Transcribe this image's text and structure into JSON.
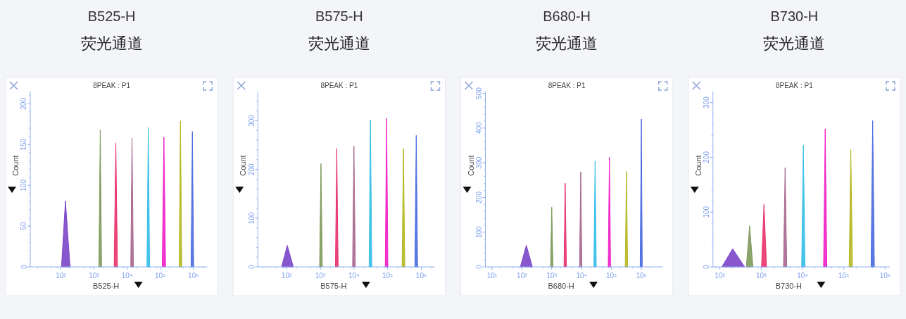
{
  "chart_data": [
    {
      "type": "area",
      "title": "B525-H",
      "subtitle": "荧光通道",
      "annotations": [
        "8PEAK : P1"
      ],
      "xlabel": "B525-H",
      "ylabel": "Count",
      "log": "x",
      "xlim": [
        12,
        2600000
      ],
      "xticks": [
        {
          "value": 100,
          "label": "10²"
        },
        {
          "value": 1000,
          "label": "10³"
        },
        {
          "value": 10000,
          "label": "10⁴"
        },
        {
          "value": 100000,
          "label": "10⁵"
        },
        {
          "value": 1000000,
          "label": "10⁶"
        }
      ],
      "ylim": [
        0,
        215
      ],
      "yticks": [
        0,
        50,
        100,
        150,
        200
      ],
      "series": [
        {
          "color": "#7b45c8",
          "x": [
            105,
            138,
            190
          ],
          "values": [
            0,
            81,
            0
          ]
        },
        {
          "color": "#7e9a5c",
          "x": [
            1410,
            1550,
            1700
          ],
          "values": [
            0,
            168,
            0
          ]
        },
        {
          "color": "#e8336b",
          "x": [
            4070,
            4570,
            5130
          ],
          "values": [
            0,
            152,
            0
          ]
        },
        {
          "color": "#a8688f",
          "x": [
            12900,
            14100,
            15500
          ],
          "values": [
            0,
            158,
            0
          ]
        },
        {
          "color": "#35bfe8",
          "x": [
            39800,
            43600,
            47900
          ],
          "values": [
            0,
            171,
            0
          ]
        },
        {
          "color": "#f020c8",
          "x": [
            115000,
            129000,
            145000
          ],
          "values": [
            0,
            159,
            0
          ]
        },
        {
          "color": "#b5b822",
          "x": [
            372000,
            407000,
            447000
          ],
          "values": [
            0,
            179,
            0
          ]
        },
        {
          "color": "#4a6ae0",
          "x": [
            851000,
            933000,
            1020000
          ],
          "values": [
            0,
            166,
            0
          ]
        }
      ]
    },
    {
      "type": "area",
      "title": "B575-H",
      "subtitle": "荧光通道",
      "annotations": [
        "8PEAK : P1"
      ],
      "xlabel": "B575-H",
      "ylabel": "Count",
      "log": "x",
      "xlim": [
        14,
        2500000
      ],
      "xticks": [
        {
          "value": 100,
          "label": "10²"
        },
        {
          "value": 1000,
          "label": "10³"
        },
        {
          "value": 10000,
          "label": "10⁴"
        },
        {
          "value": 100000,
          "label": "10⁵"
        },
        {
          "value": 1000000,
          "label": "10⁶"
        }
      ],
      "ylim": [
        0,
        360
      ],
      "yticks": [
        0,
        100,
        200,
        300
      ],
      "series": [
        {
          "color": "#7b45c8",
          "x": [
            71,
            105,
            158
          ],
          "values": [
            0,
            44,
            0
          ]
        },
        {
          "color": "#7e9a5c",
          "x": [
            955,
            1050,
            1150
          ],
          "values": [
            0,
            212,
            0
          ]
        },
        {
          "color": "#e8336b",
          "x": [
            2820,
            3090,
            3390
          ],
          "values": [
            0,
            243,
            0
          ]
        },
        {
          "color": "#a8688f",
          "x": [
            9120,
            10000,
            11000
          ],
          "values": [
            0,
            248,
            0
          ]
        },
        {
          "color": "#35bfe8",
          "x": [
            28200,
            30900,
            33900
          ],
          "values": [
            0,
            302,
            0
          ]
        },
        {
          "color": "#f020c8",
          "x": [
            85100,
            93300,
            102000
          ],
          "values": [
            0,
            305,
            0
          ]
        },
        {
          "color": "#b5b822",
          "x": [
            269000,
            295000,
            324000
          ],
          "values": [
            0,
            243,
            0
          ]
        },
        {
          "color": "#4a6ae0",
          "x": [
            646000,
            708000,
            776000
          ],
          "values": [
            0,
            270,
            0
          ]
        }
      ]
    },
    {
      "type": "area",
      "title": "B680-H",
      "subtitle": "荧光通道",
      "annotations": [
        "8PEAK : P1"
      ],
      "xlabel": "B680-H",
      "ylabel": "Count",
      "log": "x",
      "xlim": [
        6,
        5000000
      ],
      "xticks": [
        {
          "value": 10,
          "label": "10¹"
        },
        {
          "value": 100,
          "label": "10²"
        },
        {
          "value": 1000,
          "label": "10³"
        },
        {
          "value": 10000,
          "label": "10⁴"
        },
        {
          "value": 100000,
          "label": "10⁵"
        },
        {
          "value": 1000000,
          "label": "10⁶"
        }
      ],
      "ylim": [
        0,
        505
      ],
      "yticks": [
        0,
        100,
        200,
        300,
        400,
        500
      ],
      "series": [
        {
          "color": "#7b45c8",
          "x": [
            89,
            141,
            224
          ],
          "values": [
            0,
            62,
            0
          ]
        },
        {
          "color": "#7e9a5c",
          "x": [
            912,
            1000,
            1100
          ],
          "values": [
            0,
            172,
            0
          ]
        },
        {
          "color": "#e8336b",
          "x": [
            2570,
            2820,
            3090
          ],
          "values": [
            0,
            241,
            0
          ]
        },
        {
          "color": "#a8688f",
          "x": [
            8510,
            9330,
            10200
          ],
          "values": [
            0,
            274,
            0
          ]
        },
        {
          "color": "#35bfe8",
          "x": [
            25700,
            28200,
            30900
          ],
          "values": [
            0,
            305,
            0
          ]
        },
        {
          "color": "#f020c8",
          "x": [
            77600,
            85100,
            93300
          ],
          "values": [
            0,
            316,
            0
          ]
        },
        {
          "color": "#b5b822",
          "x": [
            288000,
            316000,
            347000
          ],
          "values": [
            0,
            275,
            0
          ]
        },
        {
          "color": "#4a6ae0",
          "x": [
            912000,
            1000000,
            1070000
          ],
          "values": [
            0,
            426,
            0
          ]
        }
      ]
    },
    {
      "type": "area",
      "title": "B730-H",
      "subtitle": "荧光通道",
      "annotations": [
        "8PEAK : P1"
      ],
      "xlabel": "B730-H",
      "ylabel": "Count",
      "log": "x",
      "xlim": [
        68,
        1300000
      ],
      "xticks": [
        {
          "value": 100,
          "label": "10²"
        },
        {
          "value": 1000,
          "label": "10³"
        },
        {
          "value": 10000,
          "label": "10⁴"
        },
        {
          "value": 100000,
          "label": "10⁵"
        },
        {
          "value": 1000000,
          "label": "10⁶"
        }
      ],
      "ylim": [
        0,
        320
      ],
      "yticks": [
        0,
        100,
        200,
        300
      ],
      "series": [
        {
          "color": "#7b45c8",
          "x": [
            112,
            204,
            398
          ],
          "values": [
            0,
            33,
            0
          ]
        },
        {
          "color": "#7e9a5c",
          "x": [
            437,
            525,
            631
          ],
          "values": [
            0,
            75,
            0
          ]
        },
        {
          "color": "#e8336b",
          "x": [
            1020,
            1170,
            1350
          ],
          "values": [
            0,
            114,
            0
          ]
        },
        {
          "color": "#a8688f",
          "x": [
            3470,
            3800,
            4170
          ],
          "values": [
            0,
            181,
            0
          ]
        },
        {
          "color": "#35bfe8",
          "x": [
            9550,
            10500,
            11500
          ],
          "values": [
            0,
            222,
            0
          ]
        },
        {
          "color": "#f020c8",
          "x": [
            32400,
            35500,
            38900
          ],
          "values": [
            0,
            252,
            0
          ]
        },
        {
          "color": "#b5b822",
          "x": [
            135000,
            148000,
            162000
          ],
          "values": [
            0,
            214,
            0
          ]
        },
        {
          "color": "#4a6ae0",
          "x": [
            457000,
            501000,
            550000
          ],
          "values": [
            0,
            267,
            0
          ]
        }
      ]
    }
  ]
}
